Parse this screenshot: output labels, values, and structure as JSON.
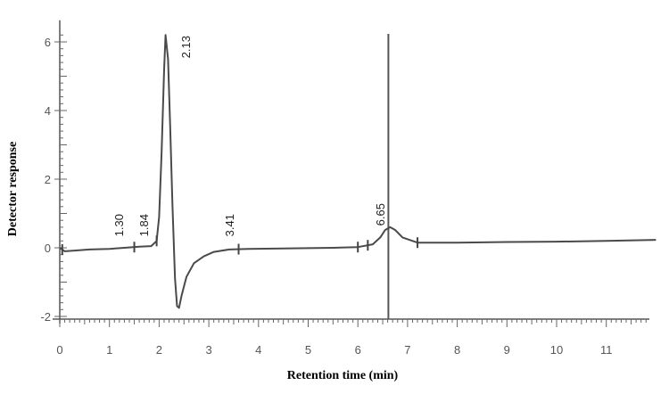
{
  "chart_data": {
    "type": "line",
    "title": "",
    "xlabel": "Retention time (min)",
    "ylabel": "Detector response",
    "xlim": [
      -0.1,
      12.0
    ],
    "ylim": [
      -2.1,
      6.5
    ],
    "x_ticks": [
      "0",
      "1",
      "2",
      "3",
      "4",
      "5",
      "6",
      "7",
      "8",
      "9",
      "10",
      "11"
    ],
    "y_ticks": [
      "-2",
      "0",
      "2",
      "4",
      "6"
    ],
    "series": [
      {
        "x": [
          0.0,
          0.05,
          0.1,
          0.3,
          0.6,
          1.0,
          1.3,
          1.6,
          1.84,
          1.95,
          2.0,
          2.05,
          2.1,
          2.13,
          2.18,
          2.22,
          2.27,
          2.32,
          2.36,
          2.4,
          2.45,
          2.55,
          2.7,
          2.9,
          3.1,
          3.41,
          3.8,
          4.5,
          5.5,
          6.0,
          6.3,
          6.45,
          6.55,
          6.65,
          6.75,
          6.9,
          7.2,
          8.0,
          9.0,
          10.0,
          11.0,
          12.0
        ],
        "y": [
          0.0,
          -0.05,
          -0.1,
          -0.08,
          -0.05,
          -0.03,
          0.0,
          0.03,
          0.05,
          0.2,
          0.9,
          2.8,
          5.2,
          6.2,
          5.5,
          3.6,
          1.2,
          -0.9,
          -1.7,
          -1.75,
          -1.4,
          -0.85,
          -0.45,
          -0.25,
          -0.12,
          -0.05,
          -0.03,
          -0.02,
          0.0,
          0.02,
          0.1,
          0.3,
          0.52,
          0.6,
          0.52,
          0.3,
          0.15,
          0.15,
          0.17,
          0.18,
          0.2,
          0.23
        ]
      }
    ],
    "peak_labels": [
      {
        "x": 1.3,
        "label": "1.30"
      },
      {
        "x": 1.84,
        "label": "1.84"
      },
      {
        "x": 2.13,
        "label": "2.13"
      },
      {
        "x": 3.41,
        "label": "3.41"
      },
      {
        "x": 6.65,
        "label": "6.65"
      }
    ],
    "vertical_line_x": 6.65,
    "grid": false
  }
}
